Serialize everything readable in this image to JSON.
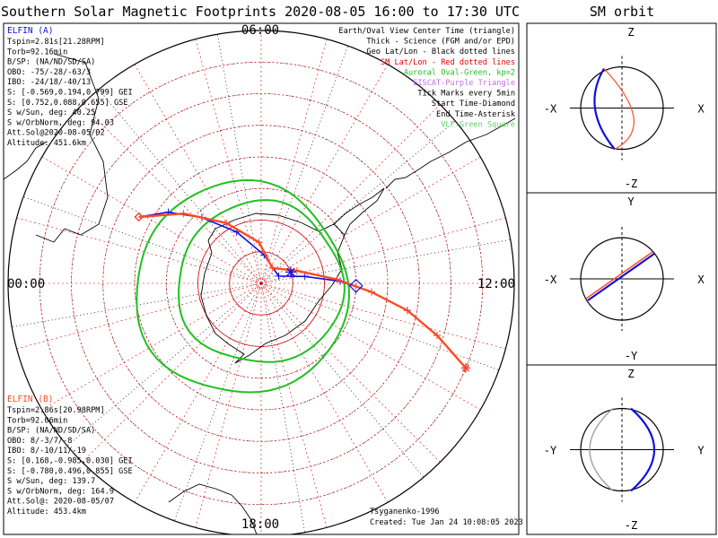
{
  "title": "Southern Solar Magnetic Footprints 2020-08-05 16:00 to 17:30 UTC",
  "orbit_title": "SM orbit",
  "mlt_labels": {
    "top": "06:00",
    "left": "00:00",
    "right": "12:00",
    "bottom": "18:00"
  },
  "elfin_a": {
    "name": "ELFIN (A)",
    "color": "#1010e0",
    "lines": [
      "Tspin=2.81s[21.28RPM]",
      "Torb=92.16min",
      "B/SP: (NA/ND/SD/SA)",
      "OBO: -75/-28/-63/3",
      "IBO: -24/18/-40/13",
      "S: [-0.569,0.194,0.799] GEI",
      "S: [0.752,0.088,0.655] GSE",
      "S w/Sun, deg: 40.25",
      "S w/OrbNorm, deg: 94.03",
      "Att.Sol@2020-08-05/02",
      "Altitude: 451.6km"
    ]
  },
  "elfin_b": {
    "name": "ELFIN (B)",
    "color": "#ff4a20",
    "lines": [
      "Tspin=2.86s[20.98RPM]",
      "Torb=92.06min",
      "B/SP: (NA/ND/SD/SA)",
      "OBO: 8/-3/7/-8",
      "IBO: 8/-10/11/-19",
      "S: [0.168,-0.985,0.030] GEI",
      "S: [-0.780,0.496,0.855] GSE",
      "S w/Sun, deg: 139.7",
      "S w/OrbNorm, deg: 164.9",
      "Att.Sol@: 2020-08-05/07",
      "Altitude: 453.4km"
    ]
  },
  "legend": [
    {
      "text": "Earth/Oval View Center Time (triangle)",
      "color": "#000000"
    },
    {
      "text": "Thick - Science (FGM and/or EPD)",
      "color": "#000000"
    },
    {
      "text": "Geo Lat/Lon - Black dotted lines",
      "color": "#000000"
    },
    {
      "text": "SM Lat/Lon - Red dotted lines",
      "color": "#e00000"
    },
    {
      "text": "Auroral Oval-Green, kp=2",
      "color": "#20c020"
    },
    {
      "text": "EISCAT-Purple Triangle",
      "color": "#c070e0"
    },
    {
      "text": "Tick Marks every 5min",
      "color": "#000000"
    },
    {
      "text": "Start Time-Diamond",
      "color": "#000000"
    },
    {
      "text": "End Time-Asterisk",
      "color": "#000000"
    },
    {
      "text": "VLF-Green Square",
      "color": "#60d060"
    }
  ],
  "footer": {
    "model": "Tsyganenko-1996",
    "created": "Created: Tue Jan 24 10:08:05 2023"
  },
  "orbit_panels": [
    {
      "top": "Z",
      "bottom": "-Z",
      "left": "-X",
      "right": "X"
    },
    {
      "top": "Y",
      "bottom": "-Y",
      "left": "-X",
      "right": "X"
    },
    {
      "top": "Z",
      "bottom": "-Z",
      "left": "-Y",
      "right": "Y"
    }
  ],
  "chart_data": {
    "type": "scatter",
    "projection": "south polar stereographic (SM magnetic local time / latitude)",
    "mlt_axis": [
      "00:00",
      "06:00",
      "12:00",
      "18:00"
    ],
    "series": [
      {
        "name": "ELFIN (A)",
        "color": "#1010e0",
        "points_mlt_colat": [
          [
            1.9,
            44
          ],
          [
            2.5,
            37
          ],
          [
            3.2,
            28
          ],
          [
            4.3,
            18
          ],
          [
            6.4,
            9
          ],
          [
            10.5,
            6
          ],
          [
            11.4,
            14
          ],
          [
            11.9,
            25
          ],
          [
            12.3,
            35
          ],
          [
            12.7,
            47
          ],
          [
            13.1,
            58
          ],
          [
            13.5,
            70
          ]
        ],
        "start": "diamond",
        "end": "asterisk"
      },
      {
        "name": "ELFIN (B)",
        "color": "#ff4a20",
        "points_mlt_colat": [
          [
            1.9,
            44
          ],
          [
            2.8,
            33
          ],
          [
            4.0,
            22
          ],
          [
            5.8,
            13
          ],
          [
            8.4,
            6
          ],
          [
            10.7,
            12
          ],
          [
            11.8,
            24
          ],
          [
            12.3,
            35
          ],
          [
            12.7,
            47
          ],
          [
            13.1,
            58
          ],
          [
            13.5,
            70
          ]
        ],
        "start": "diamond",
        "end": "asterisk"
      }
    ],
    "auroral_oval_kp": 2
  }
}
